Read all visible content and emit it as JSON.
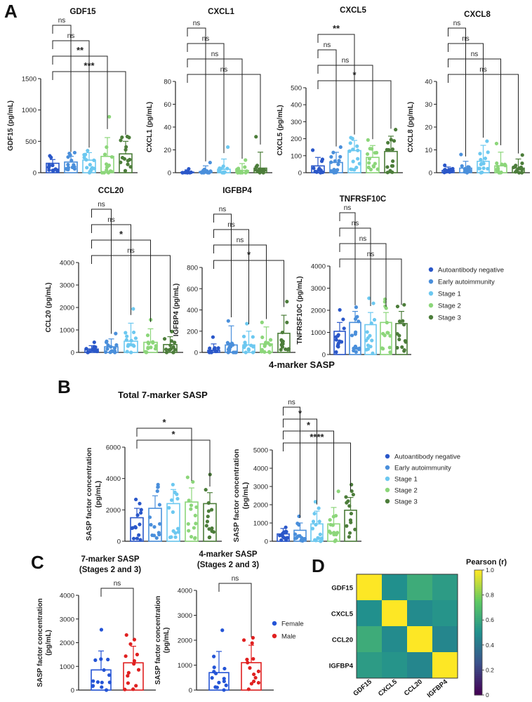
{
  "panel_letters": [
    "A",
    "B",
    "C",
    "D"
  ],
  "colors": {
    "autoantibody_negative": "#2a57c9",
    "early_autoimmunity": "#4a8fdb",
    "stage_1": "#6cc8f0",
    "stage_2": "#8cd67a",
    "stage_3": "#4c7d3a",
    "female": "#2454d6",
    "male": "#e02020",
    "axis": "#222222"
  },
  "legend_groups": [
    "Autoantibody negative",
    "Early autoimmunity",
    "Stage 1",
    "Stage 2",
    "Stage 3"
  ],
  "legend_sex": [
    "Female",
    "Male"
  ],
  "chart_data": [
    {
      "id": "gdf15",
      "panel": "A",
      "type": "bar",
      "title": "GDF15",
      "ylabel": "GDF15 (pg/mL)",
      "ylim": [
        0,
        1500
      ],
      "yticks": [
        "0",
        "500",
        "1000",
        "1500"
      ],
      "categories": [
        "Autoantibody negative",
        "Early autoimmunity",
        "Stage 1",
        "Stage 2",
        "Stage 3"
      ],
      "values": [
        150,
        170,
        200,
        260,
        300
      ],
      "errors": [
        60,
        90,
        120,
        300,
        200
      ],
      "comparisons": [
        {
          "a": 0,
          "b": 1,
          "label": "ns"
        },
        {
          "a": 0,
          "b": 2,
          "label": "ns"
        },
        {
          "a": 0,
          "b": 3,
          "label": "**"
        },
        {
          "a": 0,
          "b": 4,
          "label": "***"
        }
      ]
    },
    {
      "id": "cxcl1",
      "panel": "A",
      "type": "bar",
      "title": "CXCL1",
      "ylabel": "CXCL1 (pg/mL)",
      "ylim": [
        0,
        80
      ],
      "yticks": [
        "0",
        "20",
        "40",
        "60",
        "80"
      ],
      "categories": [
        "Autoantibody negative",
        "Early autoimmunity",
        "Stage 1",
        "Stage 2",
        "Stage 3"
      ],
      "values": [
        0.5,
        1,
        3,
        2,
        4
      ],
      "errors": [
        2,
        5,
        9,
        6,
        14
      ],
      "comparisons": [
        {
          "a": 0,
          "b": 1,
          "label": "ns"
        },
        {
          "a": 0,
          "b": 2,
          "label": "ns"
        },
        {
          "a": 0,
          "b": 3,
          "label": "ns"
        },
        {
          "a": 0,
          "b": 4,
          "label": "ns"
        }
      ]
    },
    {
      "id": "cxcl5",
      "panel": "A",
      "type": "bar",
      "title": "CXCL5",
      "ylabel": "CXCL5 (pg/mL)",
      "ylim": [
        0,
        500
      ],
      "yticks": [
        "0",
        "100",
        "200",
        "300",
        "400",
        "500"
      ],
      "categories": [
        "Autoantibody negative",
        "Early autoimmunity",
        "Stage 1",
        "Stage 2",
        "Stage 3"
      ],
      "values": [
        40,
        60,
        130,
        90,
        125
      ],
      "errors": [
        50,
        60,
        60,
        70,
        90
      ],
      "comparisons": [
        {
          "a": 0,
          "b": 2,
          "label": "**"
        },
        {
          "a": 0,
          "b": 1,
          "label": "ns"
        },
        {
          "a": 0,
          "b": 3,
          "label": "ns"
        },
        {
          "a": 0,
          "b": 4,
          "label": "*"
        }
      ]
    },
    {
      "id": "cxcl8",
      "panel": "A",
      "type": "bar",
      "title": "CXCL8",
      "ylabel": "CXCL8 (pg/mL)",
      "ylim": [
        0,
        40
      ],
      "yticks": [
        "0",
        "10",
        "20",
        "30",
        "40"
      ],
      "categories": [
        "Autoantibody negative",
        "Early autoimmunity",
        "Stage 1",
        "Stage 2",
        "Stage 3"
      ],
      "values": [
        1,
        2,
        5,
        3,
        2
      ],
      "errors": [
        1.5,
        3,
        7,
        6,
        4
      ],
      "comparisons": [
        {
          "a": 0,
          "b": 1,
          "label": "ns"
        },
        {
          "a": 0,
          "b": 2,
          "label": "ns"
        },
        {
          "a": 0,
          "b": 3,
          "label": "ns"
        },
        {
          "a": 0,
          "b": 4,
          "label": "ns"
        }
      ]
    },
    {
      "id": "ccl20",
      "panel": "A",
      "type": "bar",
      "title": "CCL20",
      "ylabel": "CCL20 (pg/mL)",
      "ylim": [
        0,
        4000
      ],
      "yticks": [
        "0",
        "1000",
        "2000",
        "3000",
        "4000"
      ],
      "categories": [
        "Autoantibody negative",
        "Early autoimmunity",
        "Stage 1",
        "Stage 2",
        "Stage 3"
      ],
      "values": [
        150,
        250,
        500,
        450,
        350
      ],
      "errors": [
        150,
        350,
        800,
        600,
        350
      ],
      "comparisons": [
        {
          "a": 0,
          "b": 1,
          "label": "ns"
        },
        {
          "a": 0,
          "b": 2,
          "label": "ns"
        },
        {
          "a": 0,
          "b": 3,
          "label": "*"
        },
        {
          "a": 0,
          "b": 4,
          "label": "ns"
        }
      ]
    },
    {
      "id": "igfbp4",
      "panel": "A",
      "type": "bar",
      "title": "IGFBP4",
      "ylabel": "IGFBP4 (pg/mL)",
      "ylim": [
        0,
        800
      ],
      "yticks": [
        "0",
        "200",
        "400",
        "600",
        "800"
      ],
      "categories": [
        "Autoantibody negative",
        "Early autoimmunity",
        "Stage 1",
        "Stage 2",
        "Stage 3"
      ],
      "values": [
        20,
        70,
        70,
        80,
        180
      ],
      "errors": [
        60,
        180,
        130,
        160,
        170
      ],
      "comparisons": [
        {
          "a": 0,
          "b": 1,
          "label": "ns"
        },
        {
          "a": 0,
          "b": 2,
          "label": "ns"
        },
        {
          "a": 0,
          "b": 3,
          "label": "ns"
        },
        {
          "a": 0,
          "b": 4,
          "label": "*"
        }
      ]
    },
    {
      "id": "tnfrsf10c",
      "panel": "A",
      "type": "bar",
      "title": "TNFRSF10C",
      "ylabel": "TNFRSF10C (pg/mL)",
      "ylim": [
        0,
        4000
      ],
      "yticks": [
        "0",
        "1000",
        "2000",
        "3000",
        "4000"
      ],
      "categories": [
        "Autoantibody negative",
        "Early autoimmunity",
        "Stage 1",
        "Stage 2",
        "Stage 3"
      ],
      "values": [
        1050,
        1450,
        1350,
        1450,
        1400
      ],
      "errors": [
        400,
        500,
        550,
        450,
        550
      ],
      "comparisons": [
        {
          "a": 0,
          "b": 1,
          "label": "ns"
        },
        {
          "a": 0,
          "b": 2,
          "label": "ns"
        },
        {
          "a": 0,
          "b": 3,
          "label": "ns"
        },
        {
          "a": 0,
          "b": 4,
          "label": "ns"
        }
      ]
    },
    {
      "id": "total7",
      "panel": "B",
      "type": "bar",
      "title": "Total 7-marker SASP",
      "ylabel": "SASP factor concentration (pg/mL)",
      "ylim": [
        0,
        6000
      ],
      "yticks": [
        "0",
        "2000",
        "4000",
        "6000"
      ],
      "categories": [
        "Autoantibody negative",
        "Early autoimmunity",
        "Stage 1",
        "Stage 2",
        "Stage 3"
      ],
      "values": [
        1500,
        2100,
        2400,
        2500,
        2400
      ],
      "errors": [
        600,
        800,
        900,
        900,
        700
      ],
      "comparisons": [
        {
          "a": 0,
          "b": 3,
          "label": "*"
        },
        {
          "a": 0,
          "b": 4,
          "label": "*"
        }
      ]
    },
    {
      "id": "sasp4",
      "panel": "B",
      "type": "bar",
      "title": "4-marker SASP",
      "ylabel": "SASP factor concentration (pg/mL)",
      "ylim": [
        0,
        5000
      ],
      "yticks": [
        "0",
        "1000",
        "2000",
        "3000",
        "4000",
        "5000"
      ],
      "categories": [
        "Autoantibody negative",
        "Early autoimmunity",
        "Stage 1",
        "Stage 2",
        "Stage 3"
      ],
      "values": [
        400,
        600,
        950,
        950,
        1700
      ],
      "errors": [
        300,
        400,
        700,
        900,
        700
      ],
      "comparisons": [
        {
          "a": 0,
          "b": 1,
          "label": "ns"
        },
        {
          "a": 0,
          "b": 2,
          "label": "*"
        },
        {
          "a": 0,
          "b": 3,
          "label": "*"
        },
        {
          "a": 0,
          "b": 4,
          "label": "****"
        }
      ]
    },
    {
      "id": "sex7",
      "panel": "C",
      "type": "bar",
      "title": "7-marker  SASP",
      "subtitle": "(Stages 2 and 3)",
      "ylabel": "SASP factor concentration (pg/mL)",
      "ylim": [
        0,
        4000
      ],
      "yticks": [
        "0",
        "1000",
        "2000",
        "3000",
        "4000"
      ],
      "categories": [
        "Female",
        "Male"
      ],
      "values": [
        850,
        1150
      ],
      "errors": [
        800,
        700
      ],
      "comparisons": [
        {
          "a": 0,
          "b": 1,
          "label": "ns"
        }
      ]
    },
    {
      "id": "sex4",
      "panel": "C",
      "type": "bar",
      "title": "4-marker SASP",
      "subtitle": "(Stages 2 and 3)",
      "ylabel": "SASP factor concentration (pg/mL)",
      "ylim": [
        0,
        4000
      ],
      "yticks": [
        "0",
        "1000",
        "2000",
        "3000",
        "4000"
      ],
      "categories": [
        "Female",
        "Male"
      ],
      "values": [
        700,
        1100
      ],
      "errors": [
        850,
        700
      ],
      "comparisons": [
        {
          "a": 0,
          "b": 1,
          "label": "ns"
        }
      ]
    },
    {
      "id": "pearson",
      "panel": "D",
      "type": "heatmap",
      "title": "Pearson (r)",
      "rows": [
        "GDF15",
        "CXCL5",
        "CCL20",
        "IGFBP4"
      ],
      "cols": [
        "GDF15",
        "CXCL5",
        "CCL20",
        "IGFBP4"
      ],
      "matrix": [
        [
          1.0,
          0.5,
          0.62,
          0.55
        ],
        [
          0.5,
          1.0,
          0.48,
          0.52
        ],
        [
          0.62,
          0.48,
          1.0,
          0.46
        ],
        [
          0.55,
          0.52,
          0.46,
          1.0
        ]
      ],
      "scale_ticks": [
        "0",
        "0.2",
        "0.4",
        "0.6",
        "0.8",
        "1.0"
      ],
      "range": [
        0,
        1
      ]
    }
  ]
}
